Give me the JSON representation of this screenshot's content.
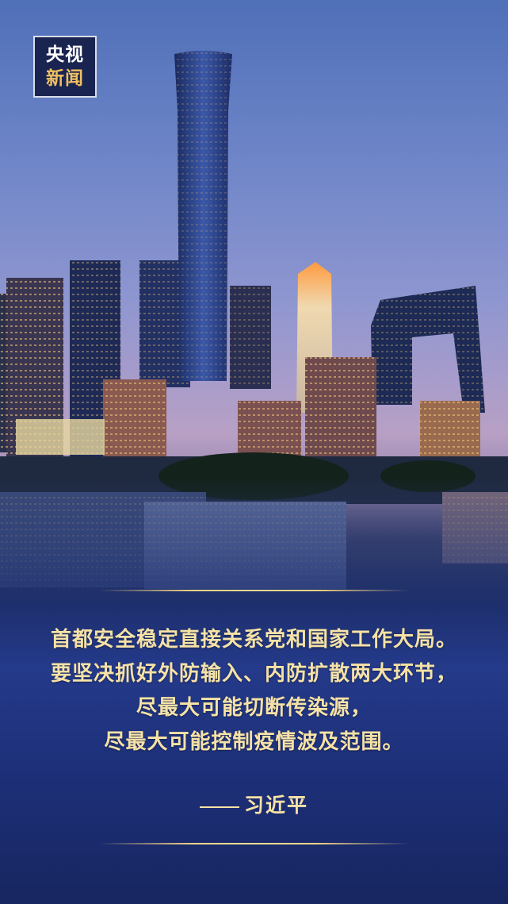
{
  "logo": {
    "line1": "央视",
    "line2": "新闻"
  },
  "quote": {
    "lines": [
      "首都安全稳定直接关系党和国家工作大局。",
      "要坚决抓好外防输入、内防扩散两大环节，",
      "尽最大可能切断传染源，",
      "尽最大可能控制疫情波及范围。"
    ],
    "author": "习近平"
  },
  "colors": {
    "gold": "#f6e2a6",
    "navy": "#1d2f78"
  }
}
